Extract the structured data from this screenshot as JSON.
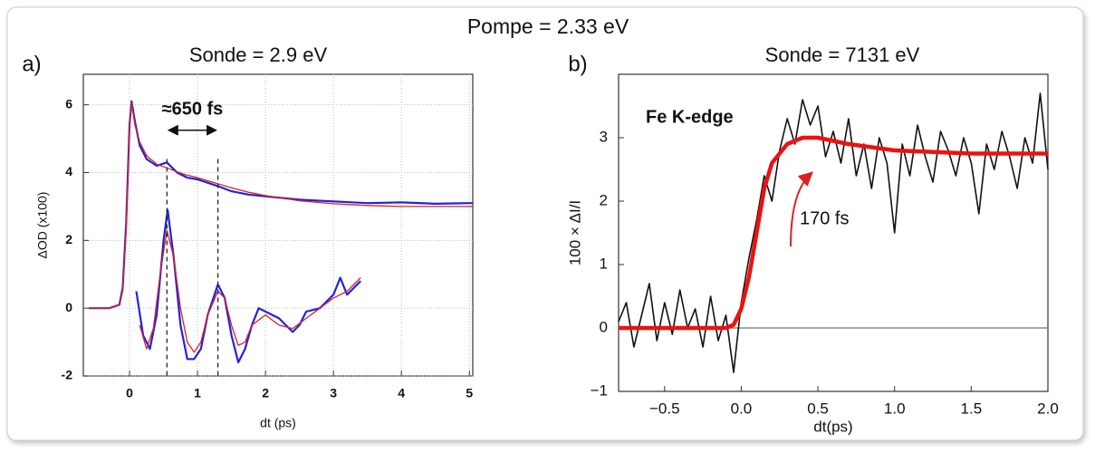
{
  "title": "Pompe = 2.33 eV",
  "chart_data": [
    {
      "type": "line",
      "title": "Sonde = 2.9 eV",
      "panel_label": "a)",
      "x_label": "dt (ps)",
      "y_label": "ΔOD (x100)",
      "annotation": "≈650 fs",
      "xlim": [
        -0.68,
        5.05
      ],
      "ylim": [
        -2,
        6.9
      ],
      "xticks": [
        0,
        1,
        2,
        3,
        4,
        5
      ],
      "yticks": [
        -2,
        0,
        2,
        4,
        6
      ],
      "grid": true,
      "vlines": [
        0.55,
        1.3
      ],
      "series": [
        {
          "color": "#2222dd",
          "x": [
            -0.6,
            -0.3,
            -0.15,
            -0.1,
            -0.05,
            0.0,
            0.03,
            0.08,
            0.15,
            0.25,
            0.4,
            0.55,
            0.7,
            0.85,
            1.0,
            1.15,
            1.3,
            1.5,
            1.75,
            2.0,
            2.5,
            3.0,
            3.5,
            4.0,
            4.5,
            5.0,
            5.05
          ],
          "values": [
            0,
            0,
            0.1,
            0.6,
            2.5,
            5.4,
            6.1,
            5.5,
            4.8,
            4.4,
            4.2,
            4.3,
            4.0,
            3.85,
            3.8,
            3.7,
            3.6,
            3.45,
            3.35,
            3.3,
            3.2,
            3.15,
            3.1,
            3.12,
            3.08,
            3.1,
            3.1
          ]
        },
        {
          "color": "#dd2222",
          "x": [
            -0.6,
            -0.3,
            -0.15,
            -0.1,
            -0.05,
            0.0,
            0.03,
            0.08,
            0.15,
            0.25,
            0.4,
            0.6,
            0.8,
            1.0,
            1.25,
            1.5,
            1.75,
            2.0,
            2.5,
            3.0,
            3.5,
            4.0,
            4.5,
            5.0,
            5.05
          ],
          "values": [
            0,
            0,
            0.1,
            0.5,
            2.3,
            5.3,
            6.05,
            5.4,
            4.9,
            4.5,
            4.25,
            4.1,
            3.95,
            3.85,
            3.7,
            3.55,
            3.42,
            3.32,
            3.17,
            3.08,
            3.03,
            3.0,
            3.0,
            3.0,
            3.0
          ]
        },
        {
          "color": "#2222dd",
          "x": [
            0.1,
            0.2,
            0.3,
            0.4,
            0.5,
            0.56,
            0.65,
            0.75,
            0.85,
            0.95,
            1.05,
            1.15,
            1.3,
            1.4,
            1.5,
            1.6,
            1.7,
            1.8,
            1.9,
            2.0,
            2.2,
            2.4,
            2.5,
            2.6,
            2.8,
            3.0,
            3.1,
            3.2,
            3.3,
            3.4
          ],
          "values": [
            0.5,
            -0.8,
            -1.2,
            -0.2,
            2.0,
            2.9,
            1.5,
            -0.5,
            -1.5,
            -1.5,
            -1.2,
            -0.2,
            0.7,
            0.3,
            -0.8,
            -1.6,
            -1.2,
            -0.5,
            0.0,
            -0.1,
            -0.3,
            -0.7,
            -0.5,
            -0.1,
            0.0,
            0.4,
            0.9,
            0.4,
            0.6,
            0.8
          ]
        },
        {
          "color": "#dd2222",
          "x": [
            0.15,
            0.25,
            0.35,
            0.45,
            0.55,
            0.65,
            0.75,
            0.85,
            0.95,
            1.05,
            1.15,
            1.3,
            1.4,
            1.5,
            1.6,
            1.7,
            1.8,
            2.0,
            2.2,
            2.4,
            2.6,
            2.8,
            3.0,
            3.2,
            3.4
          ],
          "values": [
            -0.5,
            -1.2,
            -0.6,
            1.0,
            2.3,
            1.5,
            0.0,
            -1.0,
            -1.3,
            -1.0,
            -0.2,
            0.5,
            0.3,
            -0.5,
            -1.1,
            -1.0,
            -0.5,
            -0.2,
            -0.5,
            -0.6,
            -0.3,
            0.0,
            0.3,
            0.5,
            0.9
          ]
        }
      ]
    },
    {
      "type": "line",
      "title": "Sonde = 7131 eV",
      "panel_label": "b)",
      "x_label": "dt(ps)",
      "y_label": "100 × ΔI/I",
      "annotation": "Fe K-edge",
      "fit_label": "170 fs",
      "xlim": [
        -0.8,
        2.0
      ],
      "ylim": [
        -1,
        4
      ],
      "xticks": [
        {
          "value": -0.5,
          "label": "−0.5"
        },
        {
          "value": 0,
          "label": "0.0"
        },
        0.5,
        {
          "value": 1,
          "label": "1.0"
        },
        1.5,
        {
          "value": 2,
          "label": "2.0"
        }
      ],
      "yticks": [
        {
          "value": -1,
          "label": "−1"
        },
        0,
        1,
        2,
        3
      ],
      "grid": false,
      "hline": 0,
      "series": [
        {
          "color": "#111111",
          "x": [
            -0.8,
            -0.75,
            -0.7,
            -0.65,
            -0.6,
            -0.55,
            -0.5,
            -0.45,
            -0.4,
            -0.35,
            -0.3,
            -0.25,
            -0.2,
            -0.15,
            -0.1,
            -0.05,
            0.0,
            0.05,
            0.1,
            0.15,
            0.2,
            0.25,
            0.3,
            0.35,
            0.4,
            0.45,
            0.5,
            0.55,
            0.6,
            0.65,
            0.7,
            0.75,
            0.8,
            0.85,
            0.9,
            0.95,
            1.0,
            1.05,
            1.1,
            1.15,
            1.2,
            1.25,
            1.3,
            1.35,
            1.4,
            1.45,
            1.5,
            1.55,
            1.6,
            1.65,
            1.7,
            1.75,
            1.8,
            1.85,
            1.9,
            1.95,
            2.0
          ],
          "values": [
            0.1,
            0.4,
            -0.3,
            0.2,
            0.7,
            -0.2,
            0.4,
            -0.1,
            0.6,
            0.0,
            0.3,
            -0.3,
            0.5,
            -0.2,
            0.2,
            -0.7,
            0.4,
            1.1,
            1.7,
            2.4,
            2.0,
            2.8,
            3.3,
            2.9,
            3.6,
            3.2,
            3.5,
            2.7,
            3.1,
            2.6,
            3.3,
            2.4,
            2.9,
            2.2,
            3.0,
            2.6,
            1.5,
            2.9,
            2.4,
            3.2,
            2.7,
            2.3,
            3.1,
            2.8,
            2.4,
            3.0,
            2.6,
            1.8,
            2.9,
            2.5,
            3.1,
            2.7,
            2.2,
            3.0,
            2.6,
            3.7,
            2.5
          ]
        },
        {
          "color": "#ee1111",
          "x": [
            -0.8,
            -0.4,
            -0.1,
            -0.05,
            0.0,
            0.05,
            0.1,
            0.15,
            0.2,
            0.3,
            0.4,
            0.5,
            0.7,
            1.0,
            1.5,
            2.0
          ],
          "values": [
            0,
            0,
            0,
            0.05,
            0.3,
            0.8,
            1.5,
            2.2,
            2.6,
            2.9,
            3.0,
            3.0,
            2.9,
            2.8,
            2.75,
            2.75
          ]
        }
      ]
    }
  ]
}
